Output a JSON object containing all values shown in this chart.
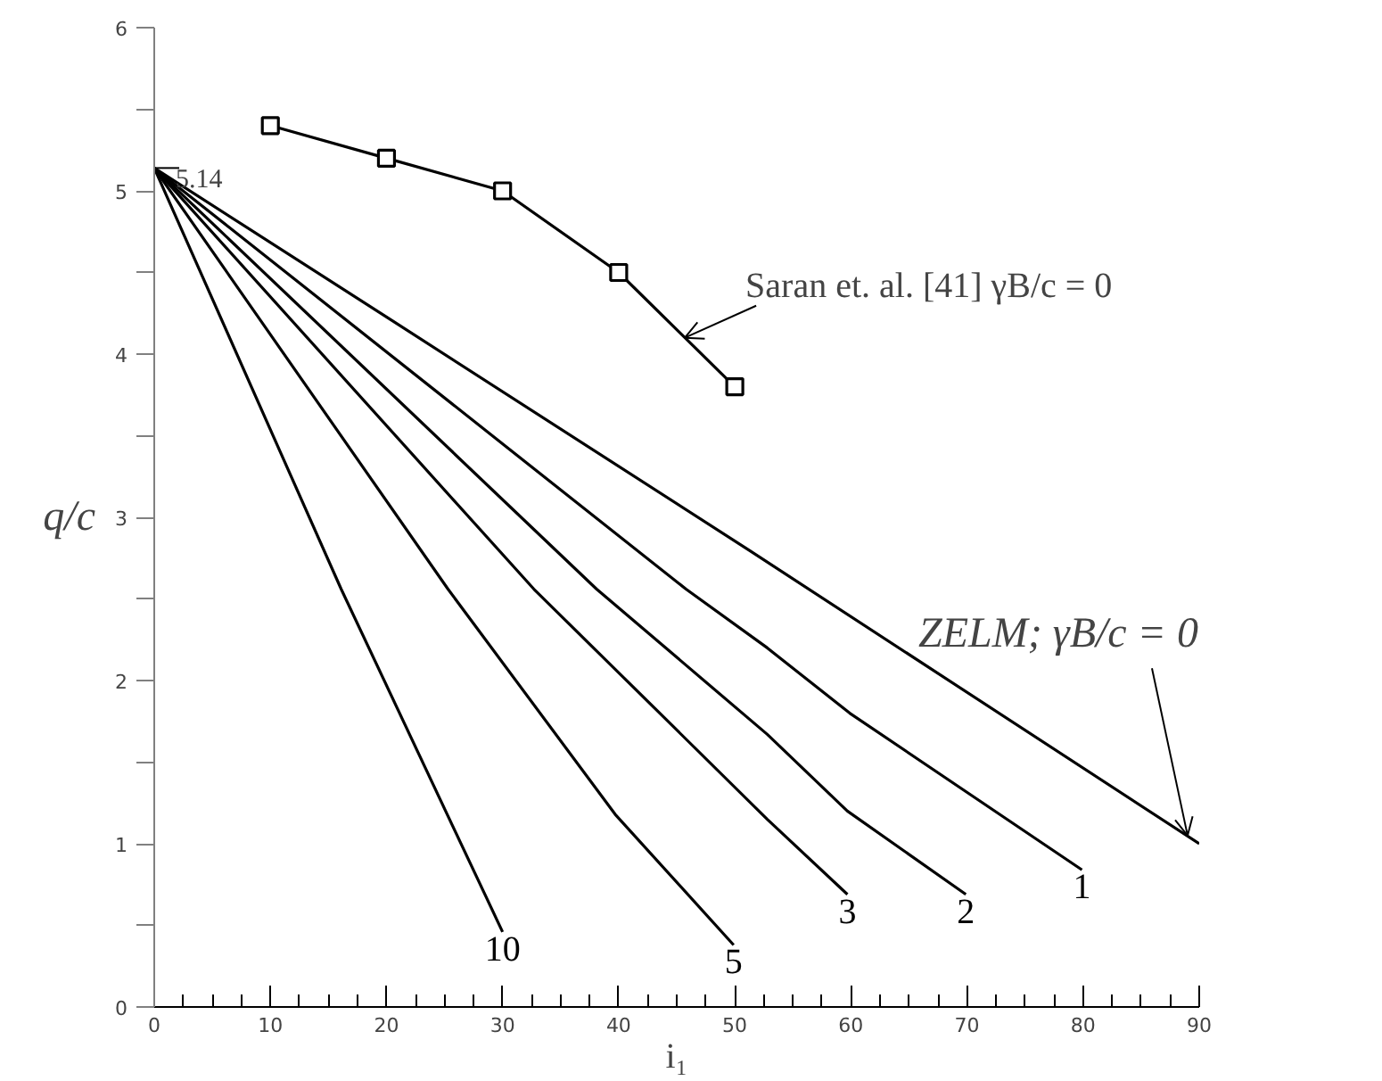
{
  "chart_data": {
    "type": "line",
    "xlabel": "i₁",
    "ylabel": "q/c",
    "xlim": [
      0,
      90
    ],
    "ylim": [
      0,
      6
    ],
    "xticks": [
      0,
      10,
      20,
      30,
      40,
      50,
      60,
      70,
      80,
      90
    ],
    "yticks": [
      0,
      1,
      2,
      3,
      4,
      5,
      6
    ],
    "grid": false,
    "legend": false,
    "marker": "none",
    "line_style": "solid",
    "series": [
      {
        "color": "#000000",
        "x": [
          10,
          20,
          30,
          40,
          50
        ],
        "values": [
          5.4,
          5.2,
          5.0,
          4.5,
          3.8
        ],
        "marker": "square"
      },
      {
        "color": "#000000",
        "x": [
          0,
          20.6,
          51.2,
          90
        ],
        "values": [
          5.14,
          4.2,
          2.8,
          1.0
        ]
      },
      {
        "name": "1",
        "color": "#000000",
        "x": [
          0,
          45.8,
          52.8,
          59.9,
          79.9
        ],
        "values": [
          5.14,
          2.56,
          2.2,
          1.8,
          0.84
        ]
      },
      {
        "name": "2",
        "color": "#000000",
        "x": [
          0,
          38.1,
          52.8,
          59.7,
          69.9
        ],
        "values": [
          5.14,
          2.56,
          1.67,
          1.2,
          0.69
        ]
      },
      {
        "name": "3",
        "color": "#000000",
        "x": [
          0,
          32.7,
          52.8,
          59.7
        ],
        "values": [
          5.14,
          2.56,
          1.15,
          0.69
        ]
      },
      {
        "name": "5",
        "color": "#000000",
        "x": [
          0,
          25.3,
          39.7,
          49.9
        ],
        "values": [
          5.14,
          2.56,
          1.18,
          0.38
        ]
      },
      {
        "name": "10",
        "color": "#000000",
        "x": [
          0,
          16.1,
          30.0
        ],
        "values": [
          5.14,
          2.56,
          0.46
        ]
      }
    ],
    "annotations": [
      {
        "text": "5.14",
        "x": 0,
        "y": 5.14
      },
      {
        "text": "Saran et. al. [41] γB/c = 0",
        "x": 45.7,
        "y": 4.1
      },
      {
        "text": "ZELM; γB/c = 0",
        "x": 89,
        "y": 1.05
      }
    ]
  }
}
